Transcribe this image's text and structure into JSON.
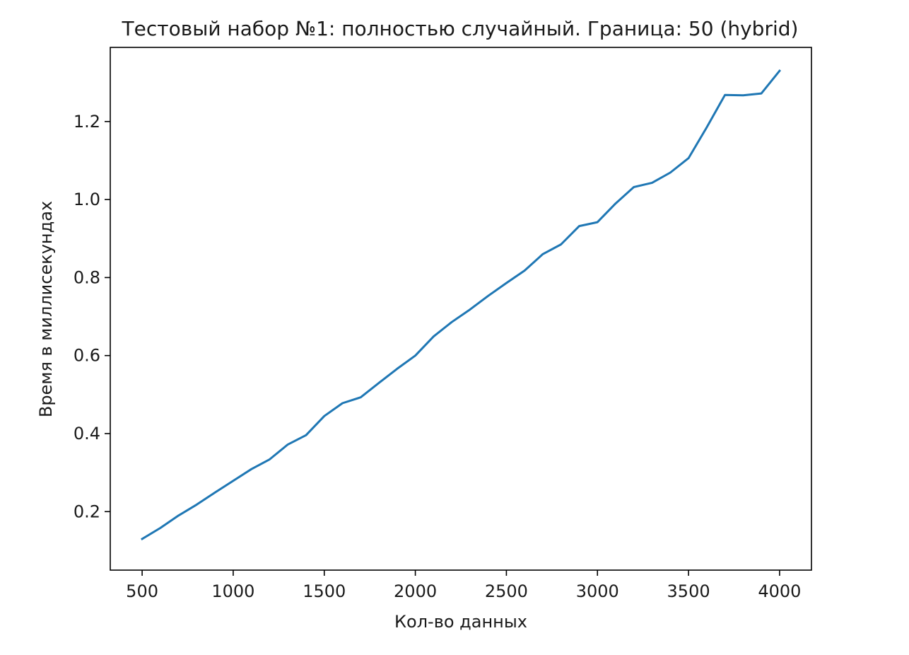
{
  "chart_data": {
    "type": "line",
    "title": "Тестовый набор №1: полностью случайный. Граница: 50 (hybrid)",
    "xlabel": "Кол-во данных",
    "ylabel": "Время в миллисекундах",
    "xlim": [
      325,
      4175
    ],
    "ylim": [
      0.05,
      1.39
    ],
    "xticks": [
      500,
      1000,
      1500,
      2000,
      2500,
      3000,
      3500,
      4000
    ],
    "yticks": [
      0.2,
      0.4,
      0.6,
      0.8,
      1.0,
      1.2
    ],
    "ytick_labels": [
      "0.2",
      "0.4",
      "0.6",
      "0.8",
      "1.0",
      "1.2"
    ],
    "grid": false,
    "line_color": "#1f77b4",
    "x": [
      500,
      600,
      700,
      800,
      900,
      1000,
      1100,
      1200,
      1300,
      1400,
      1500,
      1600,
      1700,
      1800,
      1900,
      2000,
      2100,
      2200,
      2300,
      2400,
      2500,
      2600,
      2700,
      2800,
      2900,
      3000,
      3100,
      3200,
      3300,
      3400,
      3500,
      3600,
      3700,
      3800,
      3900,
      4000
    ],
    "series": [
      {
        "values": [
          0.13,
          0.158,
          0.19,
          0.218,
          0.249,
          0.279,
          0.309,
          0.334,
          0.372,
          0.396,
          0.445,
          0.478,
          0.493,
          0.53,
          0.566,
          0.6,
          0.649,
          0.686,
          0.718,
          0.753,
          0.786,
          0.818,
          0.86,
          0.885,
          0.932,
          0.942,
          0.99,
          1.032,
          1.043,
          1.069,
          1.106,
          1.185,
          1.268,
          1.267,
          1.272,
          1.33
        ]
      }
    ]
  }
}
